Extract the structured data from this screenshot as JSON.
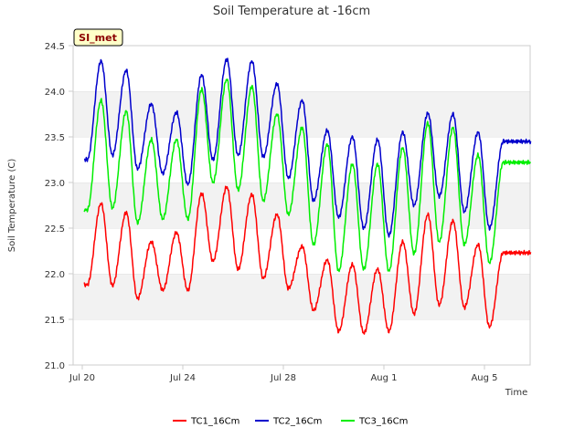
{
  "chart_data": {
    "type": "line",
    "title": "Soil Temperature at -16cm",
    "xlabel": "Time",
    "ylabel": "Soil Temperature (C)",
    "badge": "SI_met",
    "x_ticks": [
      {
        "day": 0,
        "label": "Jul 20"
      },
      {
        "day": 4,
        "label": "Jul 24"
      },
      {
        "day": 8,
        "label": "Jul 28"
      },
      {
        "day": 12,
        "label": "Aug 1"
      },
      {
        "day": 16,
        "label": "Aug 5"
      }
    ],
    "y_ticks": [
      "21.0",
      "21.5",
      "22.0",
      "22.5",
      "23.0",
      "23.5",
      "24.0",
      "24.5"
    ],
    "xlim_days": [
      0,
      17.9
    ],
    "ylim": [
      21.0,
      24.5
    ],
    "x_unit": "days since Jul 20",
    "grid": true,
    "legend_position": "bottom",
    "series": [
      {
        "name": "TC1_16Cm",
        "color": "#ff0000",
        "daily_min": [
          21.88,
          21.87,
          21.73,
          21.82,
          21.82,
          22.14,
          22.05,
          21.95,
          21.84,
          21.6,
          21.37,
          21.35,
          21.37,
          21.56,
          21.66,
          21.63,
          21.42
        ],
        "daily_max": [
          22.77,
          22.67,
          22.35,
          22.45,
          22.88,
          22.95,
          22.87,
          22.65,
          22.3,
          22.15,
          22.1,
          22.05,
          22.35,
          22.65,
          22.58,
          22.32,
          22.23
        ]
      },
      {
        "name": "TC2_16Cm",
        "color": "#0000cc",
        "daily_min": [
          23.25,
          23.3,
          23.15,
          23.1,
          22.98,
          23.25,
          23.3,
          23.28,
          23.05,
          22.8,
          22.62,
          22.5,
          22.42,
          22.75,
          22.85,
          22.68,
          22.5
        ],
        "daily_max": [
          24.33,
          24.23,
          23.86,
          23.77,
          24.18,
          24.35,
          24.33,
          24.08,
          23.9,
          23.57,
          23.5,
          23.47,
          23.55,
          23.76,
          23.75,
          23.55,
          23.45
        ]
      },
      {
        "name": "TC3_16Cm",
        "color": "#00ee00",
        "daily_min": [
          22.7,
          22.72,
          22.56,
          22.6,
          22.6,
          23.0,
          22.92,
          22.8,
          22.65,
          22.32,
          22.03,
          22.05,
          22.03,
          22.22,
          22.35,
          22.32,
          22.12
        ],
        "daily_max": [
          23.9,
          23.78,
          23.47,
          23.47,
          24.02,
          24.13,
          24.05,
          23.75,
          23.6,
          23.42,
          23.2,
          23.2,
          23.38,
          23.65,
          23.6,
          23.3,
          23.22
        ]
      }
    ]
  }
}
